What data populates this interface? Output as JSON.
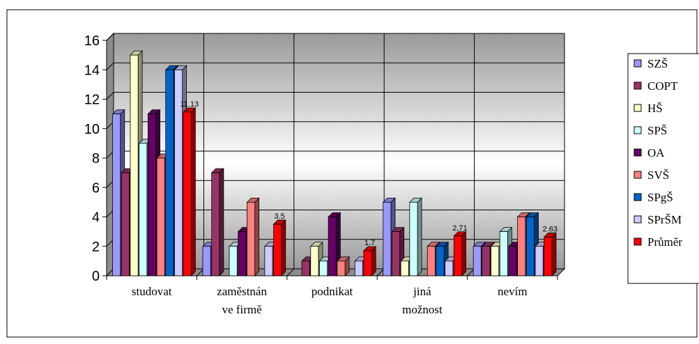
{
  "chart_data": {
    "type": "bar",
    "title": "",
    "xlabel": "",
    "ylabel": "",
    "ylim": [
      0,
      16
    ],
    "yticks": [
      0,
      2,
      4,
      6,
      8,
      10,
      12,
      14,
      16
    ],
    "grid": true,
    "legend_position": "right",
    "categories": [
      [
        "studovat"
      ],
      [
        "zaměstnán",
        "ve firmě"
      ],
      [
        "podnikat"
      ],
      [
        "jiná",
        "možnost"
      ],
      [
        "nevím"
      ]
    ],
    "series": [
      {
        "name": "SZŠ",
        "color": "#9999ff",
        "values": [
          11,
          2,
          0,
          5,
          2
        ]
      },
      {
        "name": "COPT",
        "color": "#993366",
        "values": [
          7,
          7,
          1,
          3,
          2
        ]
      },
      {
        "name": "HŠ",
        "color": "#ffffcc",
        "values": [
          15,
          0,
          2,
          1,
          2
        ]
      },
      {
        "name": "SPŠ",
        "color": "#ccffff",
        "values": [
          9,
          2,
          1,
          5,
          3
        ]
      },
      {
        "name": "OA",
        "color": "#660066",
        "values": [
          11,
          3,
          4,
          0,
          2
        ]
      },
      {
        "name": "SVŠ",
        "color": "#ff8080",
        "values": [
          8,
          5,
          1,
          2,
          4
        ]
      },
      {
        "name": "SPgŠ",
        "color": "#0066cc",
        "values": [
          14,
          0,
          0,
          2,
          4
        ]
      },
      {
        "name": "SPrŠM",
        "color": "#ccccff",
        "values": [
          14,
          2,
          1,
          1,
          2
        ]
      },
      {
        "name": "Průměr",
        "color": "#ff0000",
        "values": [
          11.13,
          3.5,
          1.7,
          2.71,
          2.63
        ],
        "data_labels": [
          "11.13",
          "3.5",
          "1.7",
          "2.71",
          "2.63"
        ]
      }
    ]
  }
}
